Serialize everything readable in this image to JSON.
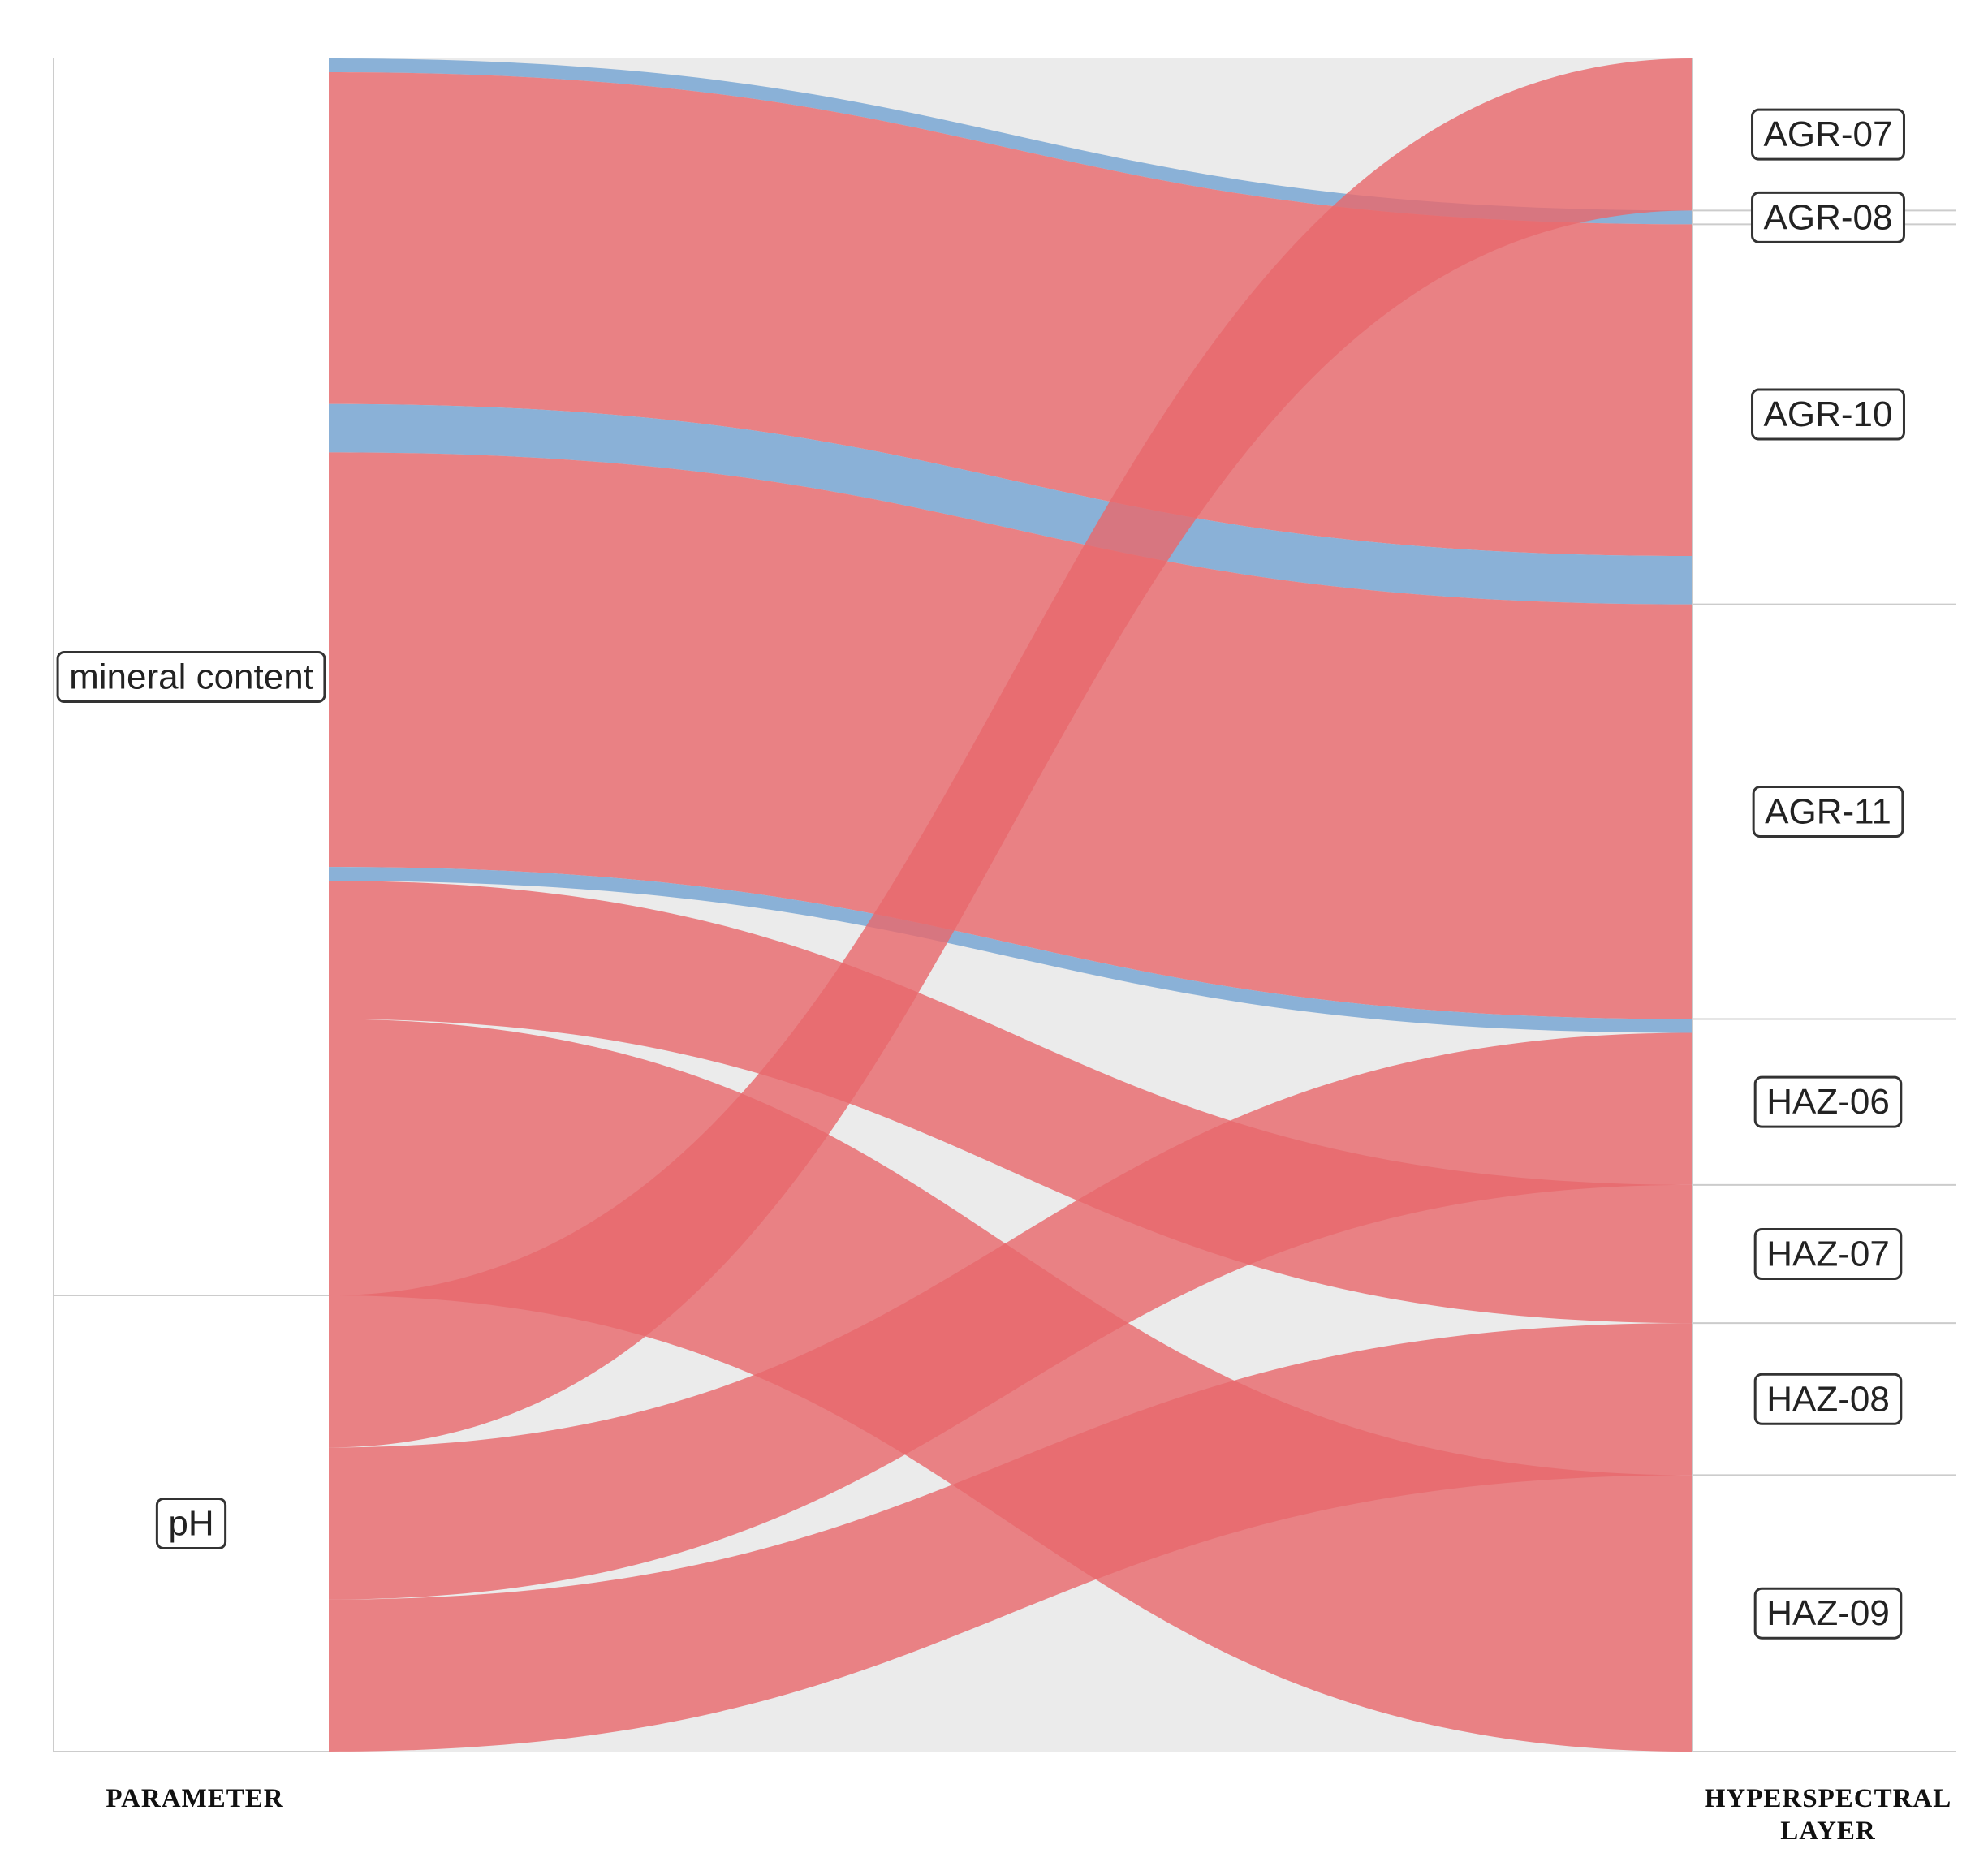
{
  "chart_data": {
    "type": "alluvial",
    "title": "",
    "axes": [
      "PARAMETER",
      "HYPERSPECTRAL LAYER"
    ],
    "left_nodes": [
      "mineral content",
      "pH"
    ],
    "right_nodes": [
      "AGR-07",
      "AGR-08",
      "AGR-10",
      "AGR-11",
      "HAZ-06",
      "HAZ-07",
      "HAZ-08",
      "HAZ-09"
    ],
    "colors": {
      "red_flow": "#e8696c",
      "blue_flow": "#7fabd5",
      "panel_bg": "#ebebeb"
    },
    "flows": [
      {
        "from": "mineral content",
        "to": "AGR-08",
        "value": 0.1,
        "color": "blue"
      },
      {
        "from": "mineral content",
        "to": "AGR-10",
        "value": 2.4,
        "color": "red"
      },
      {
        "from": "mineral content",
        "to": "AGR-10",
        "value": 0.35,
        "color": "blue"
      },
      {
        "from": "mineral content",
        "to": "AGR-11",
        "value": 3.0,
        "color": "red"
      },
      {
        "from": "mineral content",
        "to": "HAZ-06",
        "value": 0.1,
        "color": "blue"
      },
      {
        "from": "mineral content",
        "to": "HAZ-07",
        "value": 1.0,
        "color": "red"
      },
      {
        "from": "mineral content",
        "to": "HAZ-09",
        "value": 2.0,
        "color": "red"
      },
      {
        "from": "pH",
        "to": "AGR-07",
        "value": 1.1,
        "color": "red"
      },
      {
        "from": "pH",
        "to": "HAZ-06",
        "value": 1.1,
        "color": "red"
      },
      {
        "from": "pH",
        "to": "HAZ-08",
        "value": 1.1,
        "color": "red"
      }
    ]
  }
}
